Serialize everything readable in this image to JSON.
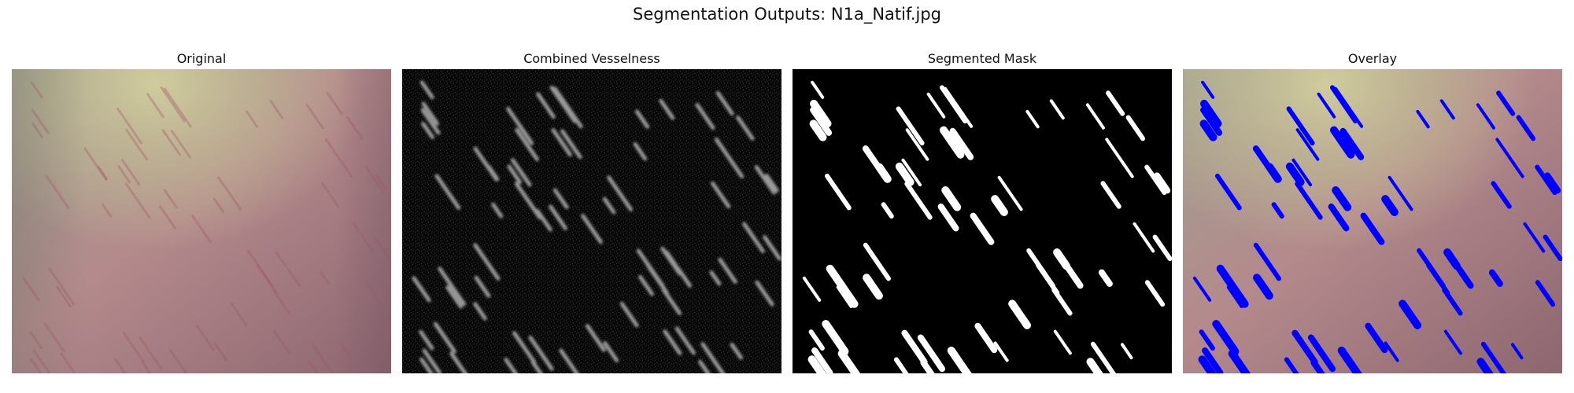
{
  "figure": {
    "suptitle": "Segmentation Outputs: N1a_Natif.jpg"
  },
  "panels": [
    {
      "title": "Original"
    },
    {
      "title": "Combined Vesselness"
    },
    {
      "title": "Segmented Mask"
    },
    {
      "title": "Overlay"
    }
  ],
  "colors": {
    "figure_background": "#ffffff",
    "mask_foreground": "#ffffff",
    "mask_background": "#000000",
    "overlay_vessels": "#0000ff",
    "skin_base": "#a87a80",
    "skin_highlight": "#c7c79a"
  }
}
